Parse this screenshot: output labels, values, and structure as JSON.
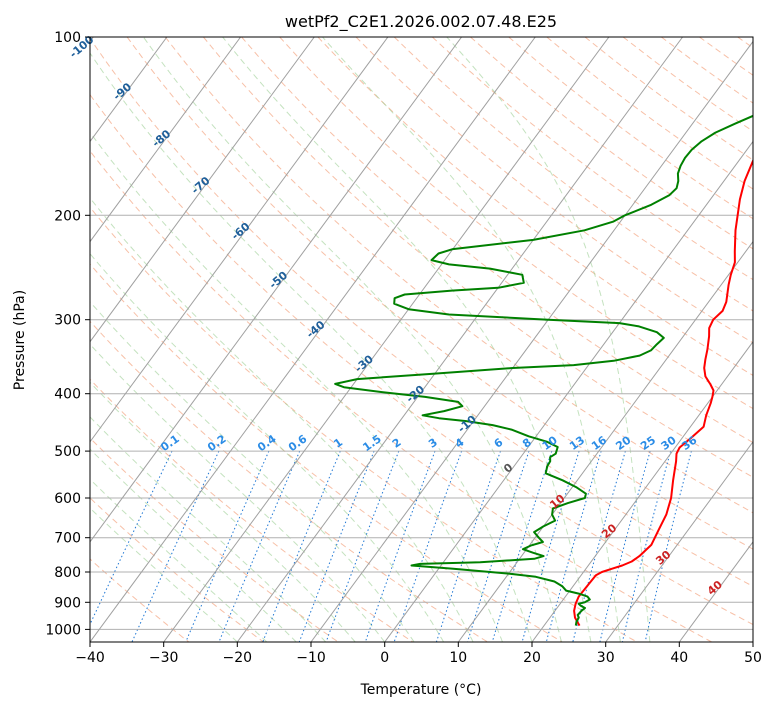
{
  "chart_data": {
    "type": "line",
    "title": "wetPf2_C2E1.2026.002.07.48.E25",
    "xlabel": "Temperature (°C)",
    "ylabel": "Pressure (hPa)",
    "xlim": [
      -40,
      50
    ],
    "ylim": [
      1050,
      100
    ],
    "y_scale": "log",
    "x_ticks": [
      -40,
      -30,
      -20,
      -10,
      0,
      10,
      20,
      30,
      40,
      50
    ],
    "y_ticks": [
      100,
      200,
      300,
      400,
      500,
      600,
      700,
      800,
      900,
      1000
    ],
    "grid": true,
    "series": [
      {
        "name": "",
        "color": "#ff0000",
        "points": [
          [
            1,
            100
          ],
          [
            0,
            113
          ],
          [
            -1.2,
            125
          ],
          [
            -1.3,
            128
          ],
          [
            0,
            137
          ],
          [
            1.2,
            150
          ],
          [
            2,
            163
          ],
          [
            2.8,
            175
          ],
          [
            4,
            188
          ],
          [
            6.5,
            212
          ],
          [
            8.5,
            230
          ],
          [
            9.6,
            240
          ],
          [
            10.3,
            252
          ],
          [
            11,
            262
          ],
          [
            12.4,
            280
          ],
          [
            12.8,
            290
          ],
          [
            12.4,
            300
          ],
          [
            12.7,
            310
          ],
          [
            13.5,
            320
          ],
          [
            14.6,
            337
          ],
          [
            15.3,
            350
          ],
          [
            16,
            362
          ],
          [
            17,
            374
          ],
          [
            18.5,
            386
          ],
          [
            19.5,
            395
          ],
          [
            20,
            405
          ],
          [
            20.4,
            415
          ],
          [
            21,
            435
          ],
          [
            21.8,
            455
          ],
          [
            21.2,
            475
          ],
          [
            20.6,
            493
          ],
          [
            20.8,
            505
          ],
          [
            21.5,
            520
          ],
          [
            23,
            560
          ],
          [
            24.5,
            600
          ],
          [
            25.5,
            640
          ],
          [
            26,
            680
          ],
          [
            26.5,
            720
          ],
          [
            26,
            752
          ],
          [
            25.5,
            768
          ],
          [
            24.6,
            780
          ],
          [
            23.5,
            790
          ],
          [
            22.5,
            800
          ],
          [
            22,
            810
          ],
          [
            21.9,
            840
          ],
          [
            21.8,
            880
          ],
          [
            22.1,
            905
          ],
          [
            22.6,
            930
          ],
          [
            23.4,
            955
          ],
          [
            24.8,
            985
          ]
        ]
      },
      {
        "name": "",
        "color": "#008000",
        "points": [
          [
            -1,
            100
          ],
          [
            -2,
            105
          ],
          [
            -2.8,
            113
          ],
          [
            -2.5,
            120
          ],
          [
            -1.3,
            125
          ],
          [
            -1.1,
            130
          ],
          [
            -2.2,
            135
          ],
          [
            -4.2,
            140
          ],
          [
            -6,
            145
          ],
          [
            -7,
            150
          ],
          [
            -7.5,
            155
          ],
          [
            -7.6,
            160
          ],
          [
            -7.4,
            165
          ],
          [
            -7,
            170
          ],
          [
            -6.2,
            175
          ],
          [
            -5.7,
            180
          ],
          [
            -6,
            185
          ],
          [
            -7.5,
            192
          ],
          [
            -10,
            200
          ],
          [
            -11,
            205
          ],
          [
            -14,
            212
          ],
          [
            -20,
            220
          ],
          [
            -30,
            228
          ],
          [
            -31.5,
            232
          ],
          [
            -31.8,
            238
          ],
          [
            -29,
            242
          ],
          [
            -23,
            246
          ],
          [
            -18,
            252
          ],
          [
            -17,
            260
          ],
          [
            -20,
            265
          ],
          [
            -26,
            268
          ],
          [
            -32,
            272
          ],
          [
            -33,
            276
          ],
          [
            -32.5,
            282
          ],
          [
            -30,
            288
          ],
          [
            -24,
            294
          ],
          [
            -10,
            300
          ],
          [
            0,
            304
          ],
          [
            3,
            308
          ],
          [
            6,
            315
          ],
          [
            7.5,
            322
          ],
          [
            7.2,
            330
          ],
          [
            7,
            338
          ],
          [
            6,
            345
          ],
          [
            3,
            352
          ],
          [
            -2,
            358
          ],
          [
            -10,
            362
          ],
          [
            -20,
            370
          ],
          [
            -30,
            378
          ],
          [
            -32.5,
            385
          ],
          [
            -31,
            390
          ],
          [
            -25,
            398
          ],
          [
            -19,
            405
          ],
          [
            -14,
            413
          ],
          [
            -13,
            420
          ],
          [
            -15,
            428
          ],
          [
            -17.5,
            435
          ],
          [
            -15,
            440
          ],
          [
            -11,
            445
          ],
          [
            -7,
            452
          ],
          [
            -4,
            460
          ],
          [
            -1,
            472
          ],
          [
            2,
            482
          ],
          [
            4,
            492
          ],
          [
            4.4,
            505
          ],
          [
            4,
            512
          ],
          [
            4.4,
            520
          ],
          [
            4.5,
            530
          ],
          [
            5,
            545
          ],
          [
            8,
            560
          ],
          [
            10.5,
            575
          ],
          [
            12.5,
            590
          ],
          [
            12.8,
            600
          ],
          [
            11,
            612
          ],
          [
            9.5,
            625
          ],
          [
            10,
            640
          ],
          [
            11,
            655
          ],
          [
            10,
            670
          ],
          [
            9.3,
            685
          ],
          [
            10.5,
            700
          ],
          [
            11.5,
            712
          ],
          [
            10.2,
            722
          ],
          [
            9.5,
            732
          ],
          [
            11.2,
            742
          ],
          [
            13,
            752
          ],
          [
            12,
            760
          ],
          [
            5,
            770
          ],
          [
            -3,
            775
          ],
          [
            -4,
            780
          ],
          [
            2,
            790
          ],
          [
            10,
            805
          ],
          [
            14,
            815
          ],
          [
            17,
            830
          ],
          [
            18.5,
            845
          ],
          [
            19.5,
            860
          ],
          [
            21.5,
            870
          ],
          [
            23,
            880
          ],
          [
            23.6,
            890
          ],
          [
            23.2,
            900
          ],
          [
            22.5,
            905
          ],
          [
            23,
            912
          ],
          [
            23.8,
            920
          ],
          [
            23.6,
            930
          ],
          [
            23.5,
            945
          ],
          [
            23.9,
            955
          ],
          [
            24,
            970
          ],
          [
            24.3,
            985
          ]
        ]
      }
    ],
    "dry_adiabat_labels": [
      "-100",
      "-90",
      "-80",
      "-70",
      "-60",
      "-50",
      "-40",
      "-30",
      "-20",
      "-10",
      "0",
      "10",
      "20",
      "30",
      "40"
    ],
    "mixing_ratio_labels": [
      "0.1",
      "0.2",
      "0.4",
      "0.6",
      "1",
      "1.5",
      "2",
      "3",
      "4",
      "6",
      "8",
      "10",
      "13",
      "16",
      "20",
      "25",
      "30",
      "36"
    ]
  }
}
